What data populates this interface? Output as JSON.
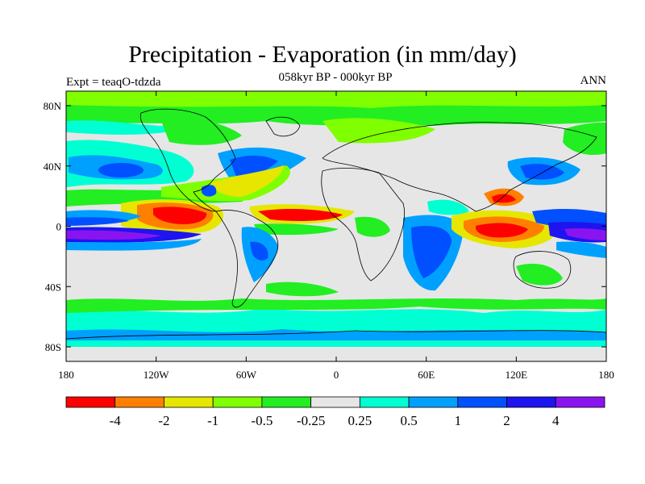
{
  "title": "Precipitation - Evaporation (in mm/day)",
  "subtitle": "058kyr BP - 000kyr BP",
  "left_label": "Expt = teaqO-tdzda",
  "right_label": "ANN",
  "lat_ticks": [
    "80N",
    "40N",
    "0",
    "40S",
    "80S"
  ],
  "lon_ticks": [
    "180",
    "120W",
    "60W",
    "0",
    "60E",
    "120E",
    "180"
  ],
  "colorbar": {
    "colors": [
      "#ff0000",
      "#ff8000",
      "#e6e600",
      "#80ff00",
      "#22ee22",
      "#e6e6e6",
      "#00ffd2",
      "#00a0ff",
      "#0050ff",
      "#1e14f0",
      "#8a14f0"
    ],
    "labels": [
      "-4",
      "-2",
      "-1",
      "-0.5",
      "-0.25",
      "0.25",
      "0.5",
      "1",
      "2",
      "4"
    ]
  }
}
